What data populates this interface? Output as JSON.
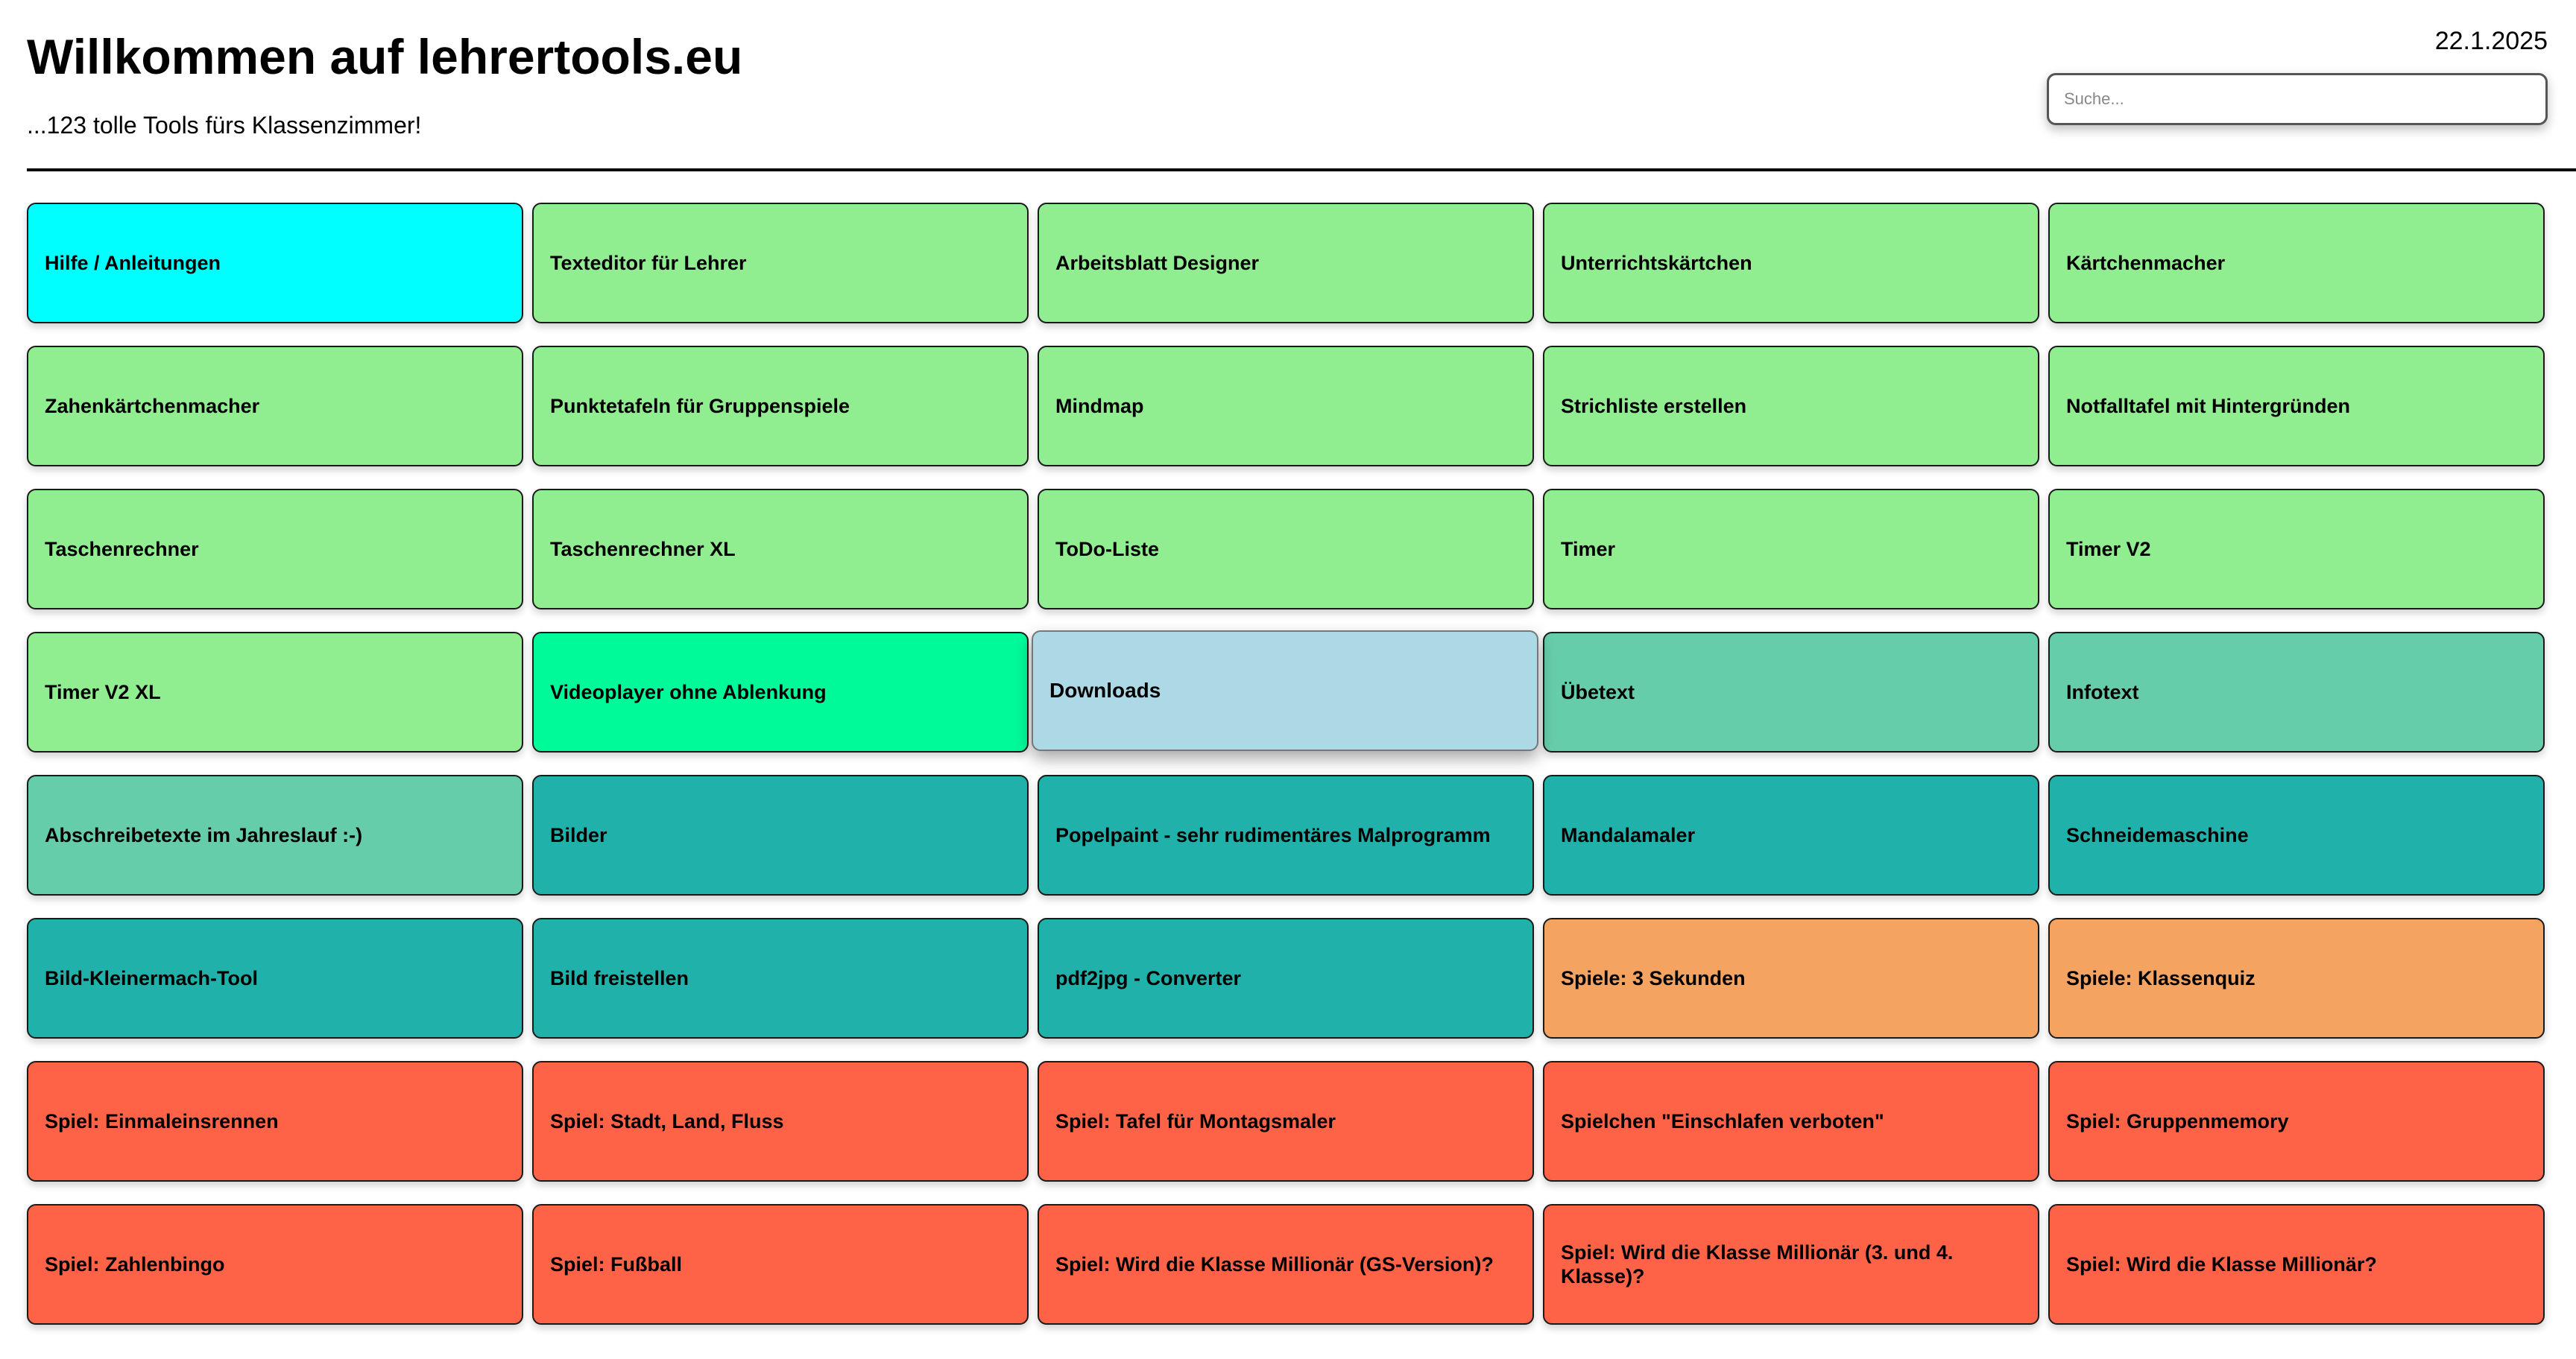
{
  "header": {
    "title": "Willkommen auf lehrertools.eu",
    "subtitle": "...123 tolle Tools fürs Klassenzimmer!",
    "date": "22.1.2025"
  },
  "search": {
    "placeholder": "Suche..."
  },
  "colors": {
    "help": "#00ffff",
    "green": "#90ee90",
    "spring": "#00fa9a",
    "lightblue": "#add8e6",
    "aquamarine": "#66cdaa",
    "teal": "#20b2aa",
    "sandy": "#f4a460",
    "tomato": "#ff6347"
  },
  "tools": [
    {
      "label": "Hilfe / Anleitungen",
      "color": "#00ffff"
    },
    {
      "label": "Texteditor für Lehrer",
      "color": "#90ee90"
    },
    {
      "label": "Arbeitsblatt Designer",
      "color": "#90ee90"
    },
    {
      "label": "Unterrichtskärtchen",
      "color": "#90ee90"
    },
    {
      "label": "Kärtchenmacher",
      "color": "#90ee90"
    },
    {
      "label": "Zahenkärtchenmacher",
      "color": "#90ee90"
    },
    {
      "label": "Punktetafeln für Gruppenspiele",
      "color": "#90ee90"
    },
    {
      "label": "Mindmap",
      "color": "#90ee90"
    },
    {
      "label": "Strichliste erstellen",
      "color": "#90ee90"
    },
    {
      "label": "Notfalltafel mit Hintergründen",
      "color": "#90ee90"
    },
    {
      "label": "Taschenrechner",
      "color": "#90ee90"
    },
    {
      "label": "Taschenrechner XL",
      "color": "#90ee90"
    },
    {
      "label": "ToDo-Liste",
      "color": "#90ee90"
    },
    {
      "label": "Timer",
      "color": "#90ee90"
    },
    {
      "label": "Timer V2",
      "color": "#90ee90"
    },
    {
      "label": "Timer V2 XL",
      "color": "#90ee90"
    },
    {
      "label": "Videoplayer ohne Ablenkung",
      "color": "#00fa9a"
    },
    {
      "label": "Downloads",
      "color": "#add8e6",
      "hover": true
    },
    {
      "label": "Übetext",
      "color": "#66cdaa"
    },
    {
      "label": "Infotext",
      "color": "#66cdaa"
    },
    {
      "label": "Abschreibetexte im Jahreslauf :-)",
      "color": "#66cdaa"
    },
    {
      "label": "Bilder",
      "color": "#20b2aa"
    },
    {
      "label": "Popelpaint - sehr rudimentäres Malprogramm",
      "color": "#20b2aa"
    },
    {
      "label": "Mandalamaler",
      "color": "#20b2aa"
    },
    {
      "label": "Schneidemaschine",
      "color": "#20b2aa"
    },
    {
      "label": "Bild-Kleinermach-Tool",
      "color": "#20b2aa"
    },
    {
      "label": "Bild freistellen",
      "color": "#20b2aa"
    },
    {
      "label": "pdf2jpg - Converter",
      "color": "#20b2aa"
    },
    {
      "label": "Spiele: 3 Sekunden",
      "color": "#f4a460"
    },
    {
      "label": "Spiele: Klassenquiz",
      "color": "#f4a460"
    },
    {
      "label": "Spiel: Einmaleinsrennen",
      "color": "#ff6347"
    },
    {
      "label": "Spiel: Stadt, Land, Fluss",
      "color": "#ff6347"
    },
    {
      "label": "Spiel: Tafel für Montagsmaler",
      "color": "#ff6347"
    },
    {
      "label": "Spielchen \"Einschlafen verboten\"",
      "color": "#ff6347"
    },
    {
      "label": "Spiel: Gruppenmemory",
      "color": "#ff6347"
    },
    {
      "label": "Spiel: Zahlenbingo",
      "color": "#ff6347"
    },
    {
      "label": "Spiel: Fußball",
      "color": "#ff6347"
    },
    {
      "label": "Spiel: Wird die Klasse Millionär (GS-Version)?",
      "color": "#ff6347"
    },
    {
      "label": "Spiel: Wird die Klasse Millionär (3. und 4. Klasse)?",
      "color": "#ff6347"
    },
    {
      "label": "Spiel: Wird die Klasse Millionär?",
      "color": "#ff6347"
    }
  ]
}
